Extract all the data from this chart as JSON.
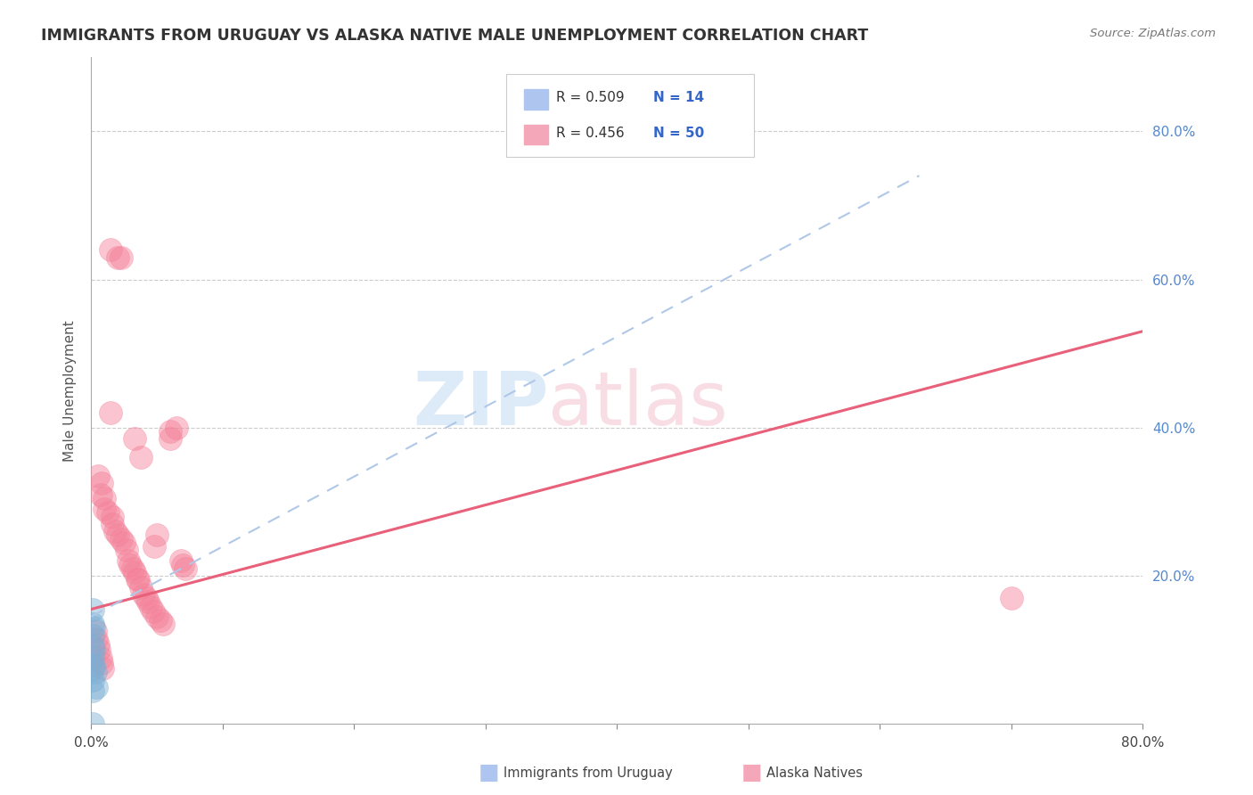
{
  "title": "IMMIGRANTS FROM URUGUAY VS ALASKA NATIVE MALE UNEMPLOYMENT CORRELATION CHART",
  "source": "Source: ZipAtlas.com",
  "ylabel": "Male Unemployment",
  "blue_scatter_color": "#7bafd4",
  "pink_scatter_color": "#f48098",
  "trendline_blue_color": "#b0c8e8",
  "trendline_pink_color": "#e8607a",
  "legend_blue_fill": "#aec6ef",
  "legend_pink_fill": "#f4a7b9",
  "blue_scatter": [
    [
      0.001,
      0.155
    ],
    [
      0.001,
      0.135
    ],
    [
      0.001,
      0.12
    ],
    [
      0.001,
      0.105
    ],
    [
      0.001,
      0.09
    ],
    [
      0.001,
      0.075
    ],
    [
      0.001,
      0.06
    ],
    [
      0.001,
      0.045
    ],
    [
      0.002,
      0.13
    ],
    [
      0.002,
      0.1
    ],
    [
      0.002,
      0.08
    ],
    [
      0.003,
      0.07
    ],
    [
      0.004,
      0.05
    ],
    [
      0.001,
      0.0
    ]
  ],
  "pink_scatter": [
    [
      0.015,
      0.64
    ],
    [
      0.02,
      0.63
    ],
    [
      0.023,
      0.63
    ],
    [
      0.015,
      0.42
    ],
    [
      0.033,
      0.385
    ],
    [
      0.038,
      0.36
    ],
    [
      0.005,
      0.335
    ],
    [
      0.008,
      0.325
    ],
    [
      0.007,
      0.31
    ],
    [
      0.01,
      0.305
    ],
    [
      0.01,
      0.29
    ],
    [
      0.013,
      0.285
    ],
    [
      0.016,
      0.28
    ],
    [
      0.016,
      0.27
    ],
    [
      0.018,
      0.26
    ],
    [
      0.02,
      0.255
    ],
    [
      0.023,
      0.25
    ],
    [
      0.025,
      0.245
    ],
    [
      0.027,
      0.235
    ],
    [
      0.028,
      0.22
    ],
    [
      0.03,
      0.215
    ],
    [
      0.032,
      0.21
    ],
    [
      0.033,
      0.205
    ],
    [
      0.035,
      0.195
    ],
    [
      0.036,
      0.195
    ],
    [
      0.038,
      0.185
    ],
    [
      0.04,
      0.175
    ],
    [
      0.042,
      0.17
    ],
    [
      0.043,
      0.165
    ],
    [
      0.045,
      0.158
    ],
    [
      0.047,
      0.152
    ],
    [
      0.05,
      0.145
    ],
    [
      0.053,
      0.14
    ],
    [
      0.055,
      0.135
    ],
    [
      0.003,
      0.125
    ],
    [
      0.004,
      0.115
    ],
    [
      0.005,
      0.108
    ],
    [
      0.006,
      0.1
    ],
    [
      0.007,
      0.09
    ],
    [
      0.008,
      0.082
    ],
    [
      0.009,
      0.075
    ],
    [
      0.048,
      0.24
    ],
    [
      0.05,
      0.255
    ],
    [
      0.06,
      0.385
    ],
    [
      0.06,
      0.395
    ],
    [
      0.065,
      0.4
    ],
    [
      0.068,
      0.22
    ],
    [
      0.07,
      0.215
    ],
    [
      0.072,
      0.21
    ],
    [
      0.7,
      0.17
    ]
  ],
  "pink_trendline": [
    [
      0.0,
      0.155
    ],
    [
      0.8,
      0.53
    ]
  ],
  "blue_trendline": [
    [
      0.0,
      0.145
    ],
    [
      0.63,
      0.74
    ]
  ],
  "xlim": [
    0.0,
    0.8
  ],
  "ylim": [
    0.0,
    0.9
  ],
  "xticks": [
    0.0,
    0.1,
    0.2,
    0.3,
    0.4,
    0.5,
    0.6,
    0.7,
    0.8
  ],
  "yticks": [
    0.0,
    0.2,
    0.4,
    0.6,
    0.8
  ],
  "figsize": [
    14.06,
    8.92
  ],
  "dpi": 100
}
